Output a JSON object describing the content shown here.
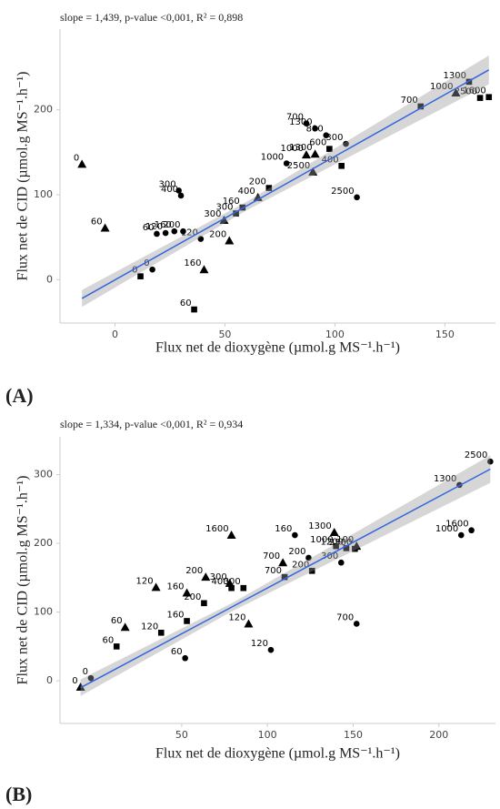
{
  "chart_data": [
    {
      "type": "scatter",
      "panel_label": "(A)",
      "title": "slope = 1,439, p-value <0,001, R² = 0,898",
      "x_label": "Flux net de dioxygène (µmol.g MS⁻¹.h⁻¹)",
      "y_label": "Flux net de CID (µmol.g MS⁻¹.h⁻¹)",
      "xlim": [
        -25,
        173
      ],
      "ylim": [
        -51,
        295
      ],
      "xticks": [
        0,
        50,
        100,
        150
      ],
      "yticks": [
        0,
        100,
        200
      ],
      "series": [
        {
          "marker": "triangle",
          "color": "#000000",
          "x": [
            -15,
            -4.5,
            40.5,
            52,
            49.6,
            65,
            87,
            91,
            90,
            155
          ],
          "values": [
            136,
            61,
            12,
            46,
            70,
            97,
            147,
            148,
            127,
            220
          ],
          "labels": [
            "0",
            "60",
            "160",
            "200",
            "300",
            "400",
            "1000",
            "1300",
            "2500",
            "1000"
          ]
        },
        {
          "marker": "circle",
          "color": "#000000",
          "x": [
            17,
            19,
            23,
            27,
            31,
            39,
            29,
            30,
            87,
            91,
            96,
            105,
            110,
            78
          ],
          "values": [
            12,
            54,
            55,
            57,
            57,
            48,
            105,
            99,
            184,
            178,
            170,
            160,
            97,
            137
          ],
          "labels": [
            "0",
            "60",
            "120",
            "160",
            "200",
            "120",
            "300",
            "400",
            "700",
            "1300",
            "800",
            "300",
            "2500",
            "1000"
          ]
        },
        {
          "marker": "square",
          "color": "#000000",
          "x": [
            11.6,
            36,
            55,
            58,
            70,
            97.5,
            103,
            139,
            161,
            166,
            170
          ],
          "values": [
            4,
            -35,
            78,
            85,
            108,
            154,
            134,
            204,
            233,
            214,
            215
          ],
          "labels": [
            "0",
            "60",
            "300",
            "160",
            "200",
            "600",
            "400",
            "700",
            "1300",
            "2500",
            "1600"
          ]
        }
      ],
      "fit": {
        "x": [
          -15,
          170
        ],
        "values": [
          -22,
          247
        ]
      },
      "band": {
        "x": [
          -15,
          60,
          170
        ],
        "lower": [
          -32,
          82,
          230
        ],
        "upper": [
          -12,
          92,
          264
        ]
      }
    },
    {
      "type": "scatter",
      "panel_label": "(B)",
      "title": "slope = 1,334, p-value <0,001, R² = 0,934",
      "x_label": "Flux net de dioxygène (µmol.g MS⁻¹.h⁻¹)",
      "y_label": "Flux net de CID (µmol.g MS⁻¹.h⁻¹)",
      "xlim": [
        -21,
        233
      ],
      "ylim": [
        -62,
        355
      ],
      "xticks": [
        50,
        100,
        150,
        200
      ],
      "yticks": [
        0,
        100,
        200,
        300
      ],
      "series": [
        {
          "marker": "triangle",
          "color": "#000000",
          "x": [
            -9,
            17,
            35,
            53,
            64,
            78,
            79,
            89,
            109,
            139,
            152
          ],
          "values": [
            -9,
            78,
            136,
            128,
            151,
            142,
            212,
            83,
            172,
            216,
            196
          ],
          "labels": [
            "0",
            "60",
            "120",
            "160",
            "200",
            "300",
            "1600",
            "120",
            "700",
            "1300",
            "100"
          ]
        },
        {
          "marker": "circle",
          "color": "#000000",
          "x": [
            -3,
            52,
            102,
            116,
            124,
            143,
            152,
            213,
            219,
            212,
            230
          ],
          "values": [
            4,
            33,
            45,
            212,
            179,
            172,
            83,
            212,
            219,
            285,
            319
          ],
          "labels": [
            "0",
            "60",
            "120",
            "160",
            "200",
            "300",
            "700",
            "1000",
            "1600",
            "1300",
            "2500"
          ]
        },
        {
          "marker": "square",
          "color": "#000000",
          "x": [
            12,
            38,
            53,
            63,
            79,
            86,
            110,
            126,
            140,
            146,
            151
          ],
          "values": [
            50,
            70,
            87,
            113,
            135,
            135,
            151,
            160,
            196,
            193,
            192
          ],
          "labels": [
            "60",
            "120",
            "160",
            "200",
            "400",
            "300",
            "700",
            "200",
            "1000",
            "1200",
            "2500"
          ]
        }
      ],
      "fit": {
        "x": [
          -9,
          230
        ],
        "values": [
          -10,
          308
        ]
      },
      "band": {
        "x": [
          -9,
          80,
          230
        ],
        "lower": [
          -22,
          102,
          288
        ],
        "upper": [
          2,
          114,
          328
        ]
      }
    }
  ]
}
